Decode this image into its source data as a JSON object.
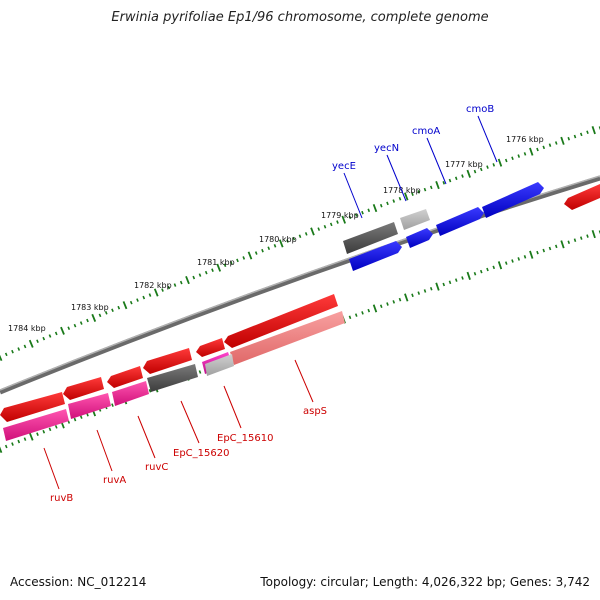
{
  "title": "Erwinia pyrifoliae Ep1/96 chromosome, complete genome",
  "footer": {
    "accession": "Accession: NC_012214",
    "topology": "Topology: circular; Length: 4,026,322 bp; Genes: 3,742"
  },
  "ticks": [
    {
      "label": "1776 kbp"
    },
    {
      "label": "1777 kbp"
    },
    {
      "label": "1778 kbp"
    },
    {
      "label": "1779 kbp"
    },
    {
      "label": "1780 kbp"
    },
    {
      "label": "1781 kbp"
    },
    {
      "label": "1782 kbp"
    },
    {
      "label": "1783 kbp"
    },
    {
      "label": "1784 kbp"
    }
  ],
  "genes_forward": [
    {
      "name": "cmoB",
      "color": "#0000cc"
    },
    {
      "name": "cmoA",
      "color": "#0000cc"
    },
    {
      "name": "yecN",
      "color": "#0000cc"
    },
    {
      "name": "yecE",
      "color": "#0000cc"
    }
  ],
  "genes_reverse": [
    {
      "name": "aspS",
      "color": "#cc0000"
    },
    {
      "name": "EpC_15610",
      "color": "#cc0000"
    },
    {
      "name": "EpC_15620",
      "color": "#cc0000"
    },
    {
      "name": "ruvC",
      "color": "#cc0000"
    },
    {
      "name": "ruvA",
      "color": "#cc0000"
    },
    {
      "name": "ruvB",
      "color": "#cc0000"
    }
  ],
  "colors": {
    "backbone": "#808080",
    "tick": "#1a7a1a",
    "forward_cds": "#0000ee",
    "reverse_cds": "#ee0000",
    "gene_pink": "#ff1493",
    "gene_salmon": "#f08080",
    "gene_gray": "#555555"
  }
}
